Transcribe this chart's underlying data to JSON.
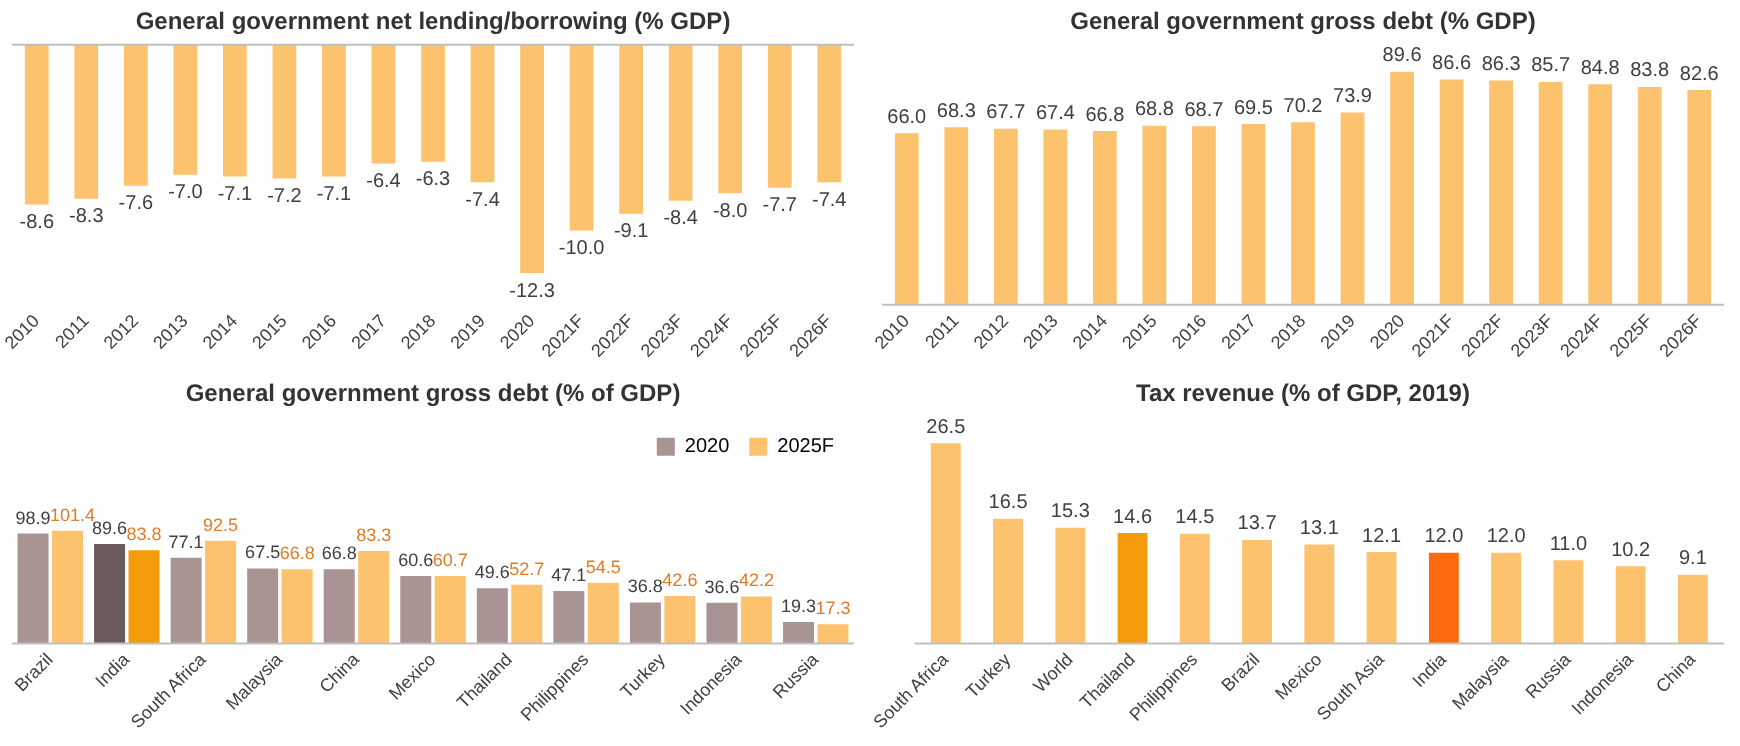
{
  "chart_data": [
    {
      "type": "bar",
      "title": "General government net lending/borrowing (% GDP)",
      "categories": [
        "2010",
        "2011",
        "2012",
        "2013",
        "2014",
        "2015",
        "2016",
        "2017",
        "2018",
        "2019",
        "2020",
        "2021F",
        "2022F",
        "2023F",
        "2024F",
        "2025F",
        "2026F"
      ],
      "values": [
        -8.6,
        -8.3,
        -7.6,
        -7.0,
        -7.1,
        -7.2,
        -7.1,
        -6.4,
        -6.3,
        -7.4,
        -12.3,
        -10.0,
        -9.1,
        -8.4,
        -8.0,
        -7.7,
        -7.4
      ],
      "value_labels": [
        "-8.6",
        "-8.3",
        "-7.6",
        "-7.0",
        "-7.1",
        "-7.2",
        "-7.1",
        "-6.4",
        "-6.3",
        "-7.4",
        "-12.3",
        "-10.0",
        "-9.1",
        "-8.4",
        "-8.0",
        "-7.7",
        "-7.4"
      ],
      "colors": [
        "#fdc26e",
        "#fdc26e",
        "#fdc26e",
        "#fdc26e",
        "#fdc26e",
        "#fdc26e",
        "#fdc26e",
        "#fdc26e",
        "#fdc26e",
        "#fdc26e",
        "#fdc26e",
        "#fdc26e",
        "#fdc26e",
        "#fdc26e",
        "#fdc26e",
        "#fdc26e",
        "#fdc26e"
      ],
      "data_labels": true
    },
    {
      "type": "bar",
      "title": "General government gross debt (% GDP)",
      "categories": [
        "2010",
        "2011",
        "2012",
        "2013",
        "2014",
        "2015",
        "2016",
        "2017",
        "2018",
        "2019",
        "2020",
        "2021F",
        "2022F",
        "2023F",
        "2024F",
        "2025F",
        "2026F"
      ],
      "values": [
        66.0,
        68.3,
        67.7,
        67.4,
        66.8,
        68.8,
        68.7,
        69.5,
        70.2,
        73.9,
        89.6,
        86.6,
        86.3,
        85.7,
        84.8,
        83.8,
        82.6
      ],
      "value_labels": [
        "66.0",
        "68.3",
        "67.7",
        "67.4",
        "66.8",
        "68.8",
        "68.7",
        "69.5",
        "70.2",
        "73.9",
        "89.6",
        "86.6",
        "86.3",
        "85.7",
        "84.8",
        "83.8",
        "82.6"
      ],
      "colors": [
        "#fdc26e",
        "#fdc26e",
        "#fdc26e",
        "#fdc26e",
        "#fdc26e",
        "#fdc26e",
        "#fdc26e",
        "#fdc26e",
        "#fdc26e",
        "#fdc26e",
        "#fdc26e",
        "#fdc26e",
        "#fdc26e",
        "#fdc26e",
        "#fdc26e",
        "#fdc26e",
        "#fdc26e"
      ],
      "data_labels": true
    },
    {
      "type": "bar",
      "title": "General government gross debt (% of GDP)",
      "categories": [
        "Brazil",
        "India",
        "South Africa",
        "Malaysia",
        "China",
        "Mexico",
        "Thailand",
        "Philippines",
        "Turkey",
        "Indonesia",
        "Russia"
      ],
      "legend": "top right",
      "data_labels": true,
      "series": [
        {
          "name": "2020",
          "color": "#a89493",
          "colors": [
            "#a89493",
            "#6b5b5b",
            "#a89493",
            "#a89493",
            "#a89493",
            "#a89493",
            "#a89493",
            "#a89493",
            "#a89493",
            "#a89493",
            "#a89493"
          ],
          "values": [
            98.9,
            89.6,
            77.1,
            67.5,
            66.8,
            60.6,
            49.6,
            47.1,
            36.8,
            36.6,
            19.3
          ]
        },
        {
          "name": "2025F",
          "color": "#fdc26e",
          "colors": [
            "#fdc26e",
            "#f59a0a",
            "#fdc26e",
            "#fdc26e",
            "#fdc26e",
            "#fdc26e",
            "#fdc26e",
            "#fdc26e",
            "#fdc26e",
            "#fdc26e",
            "#fdc26e"
          ],
          "values": [
            101.4,
            83.8,
            92.5,
            66.8,
            83.3,
            60.7,
            52.7,
            54.5,
            42.6,
            42.2,
            17.3
          ]
        }
      ]
    },
    {
      "type": "bar",
      "title": "Tax revenue (% of GDP, 2019)",
      "categories": [
        "South Africa",
        "Turkey",
        "World",
        "Thailand",
        "Philippines",
        "Brazil",
        "Mexico",
        "South Asia",
        "India",
        "Malaysia",
        "Russia",
        "Indonesia",
        "China"
      ],
      "values": [
        26.5,
        16.5,
        15.3,
        14.6,
        14.5,
        13.7,
        13.1,
        12.1,
        12.0,
        12.0,
        11.0,
        10.2,
        9.1
      ],
      "value_labels": [
        "26.5",
        "16.5",
        "15.3",
        "14.6",
        "14.5",
        "13.7",
        "13.1",
        "12.1",
        "12.0",
        "12.0",
        "11.0",
        "10.2",
        "9.1"
      ],
      "colors": [
        "#fdc26e",
        "#fdc26e",
        "#fdc26e",
        "#f59a0a",
        "#fdc26e",
        "#fdc26e",
        "#fdc26e",
        "#fdc26e",
        "#fb6a0c",
        "#fdc26e",
        "#fdc26e",
        "#fdc26e",
        "#fdc26e"
      ],
      "data_labels": true
    }
  ]
}
